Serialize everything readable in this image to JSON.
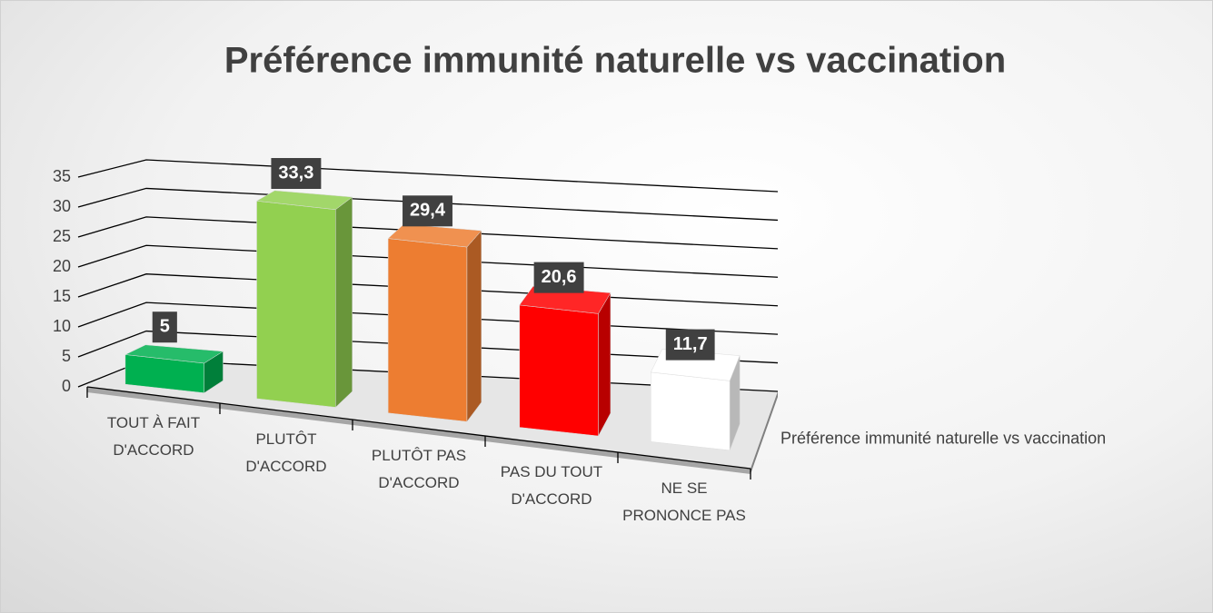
{
  "chart_data": {
    "type": "bar3d",
    "title": "Préférence immunité naturelle vs vaccination",
    "categories": [
      "TOUT À FAIT D'ACCORD",
      "PLUTÔT D'ACCORD",
      "PLUTÔT PAS D'ACCORD",
      "PAS DU TOUT D'ACCORD",
      "NE SE PRONONCE PAS"
    ],
    "series": [
      {
        "name": "Préférence immunité naturelle vs vaccination",
        "colors": [
          "#00b050",
          "#92d050",
          "#ed7d31",
          "#ff0000",
          "#ffffff"
        ],
        "values": [
          5,
          33.3,
          29.4,
          20.6,
          11.7
        ],
        "value_labels": [
          "5",
          "33,3",
          "29,4",
          "20,6",
          "11,7"
        ]
      }
    ],
    "ylim": [
      0,
      35
    ],
    "yticks": [
      0,
      5,
      10,
      15,
      20,
      25,
      30,
      35
    ],
    "grid": true
  }
}
